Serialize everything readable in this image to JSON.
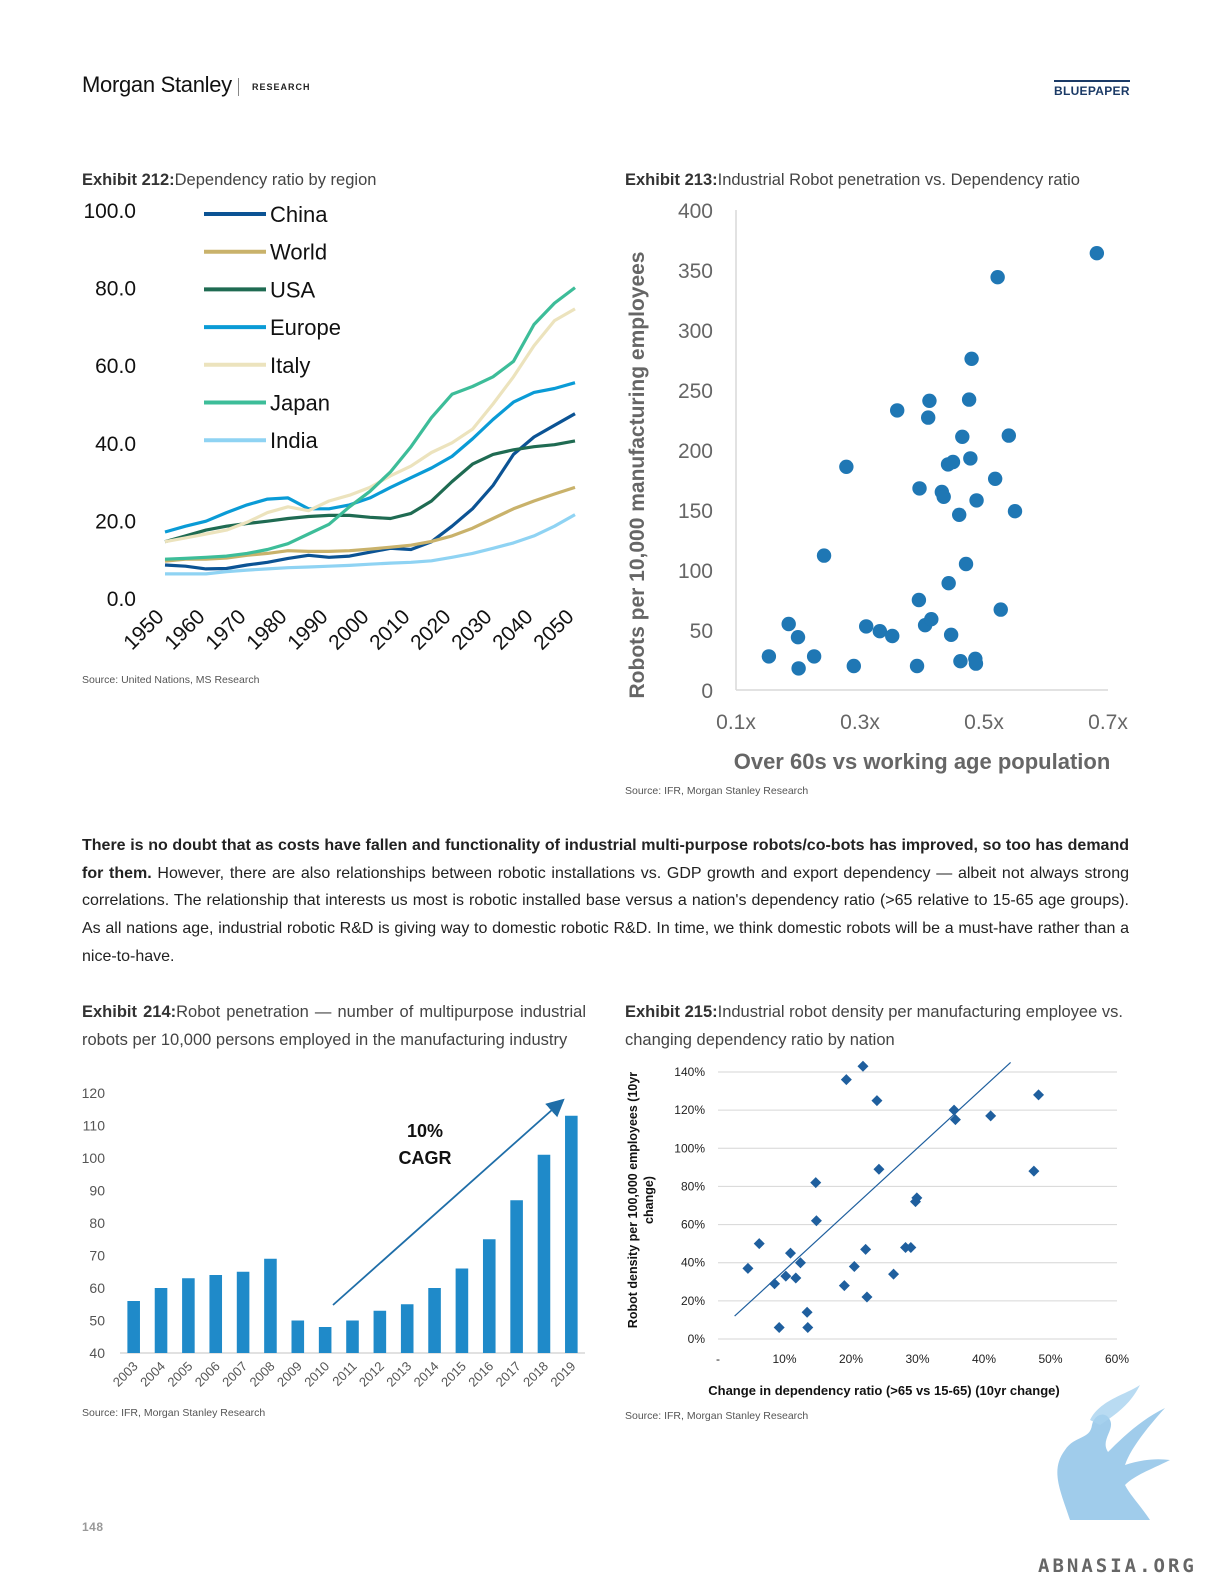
{
  "header": {
    "brand": "Morgan Stanley",
    "section": "RESEARCH",
    "badge": "BLUEPAPER"
  },
  "exhibit212": {
    "label": "Exhibit 212:",
    "title": "Dependency ratio by region",
    "source": "Source: United Nations, MS Research"
  },
  "exhibit213": {
    "label": "Exhibit 213:",
    "title": "Industrial Robot penetration vs. Dependency ratio",
    "source": "Source: IFR, Morgan Stanley Research"
  },
  "exhibit214": {
    "label": "Exhibit 214:",
    "title": "Robot penetration — number of multipurpose industrial robots per 10,000 persons employed in the manufacturing industry",
    "source": "Source: IFR, Morgan Stanley Research"
  },
  "exhibit215": {
    "label": "Exhibit 215:",
    "title": "Industrial robot density per manufacturing employee vs. changing dependency ratio by nation",
    "source": "Source: IFR, Morgan Stanley Research"
  },
  "paragraph": {
    "bold": "There is no doubt that as costs have fallen and functionality of industrial multi-purpose robots/co-bots has improved, so too has demand for them.",
    "rest": " However, there are also relationships between robotic installations vs. GDP growth and export dependency — albeit not always strong correlations. The relationship that interests us most is robotic installed base versus a nation's dependency ratio (>65 relative to 15-65 age groups). As all nations age, industrial robotic R&D is giving way to domestic robotic R&D. In time, we think domestic robots will be a must-have rather than a nice-to-have."
  },
  "page_number": "148",
  "watermark": "ABNASIA.ORG",
  "chart_data": [
    {
      "id": "exhibit212",
      "type": "line",
      "title": "Dependency ratio by region",
      "xlabel": "",
      "ylabel": "",
      "ylim": [
        0,
        100
      ],
      "yticks": [
        "100.0",
        "80.0",
        "60.0",
        "40.0",
        "20.0",
        "0.0"
      ],
      "x": [
        1950,
        1955,
        1960,
        1965,
        1970,
        1975,
        1980,
        1985,
        1990,
        1995,
        2000,
        2005,
        2010,
        2015,
        2020,
        2025,
        2030,
        2035,
        2040,
        2045,
        2050
      ],
      "xticks": [
        "1950",
        "1960",
        "1970",
        "1980",
        "1990",
        "2000",
        "2010",
        "2020",
        "2030",
        "2040",
        "2050"
      ],
      "legend": "top-left",
      "series": [
        {
          "name": "China",
          "color": "#0b5394",
          "values": [
            8.5,
            8.2,
            7.5,
            7.6,
            8.5,
            9.2,
            10.2,
            11,
            10.5,
            10.8,
            11.8,
            12.8,
            12.5,
            14.5,
            18.5,
            23,
            29,
            37,
            41.5,
            44.5,
            47.5
          ]
        },
        {
          "name": "World",
          "color": "#c9b26b",
          "values": [
            9.5,
            10,
            10,
            10.3,
            11,
            11.5,
            12.2,
            12,
            12,
            12.2,
            12.6,
            13.1,
            13.6,
            14.6,
            16,
            18,
            20.5,
            23,
            25,
            26.8,
            28.5
          ]
        },
        {
          "name": "USA",
          "color": "#1f6b52",
          "values": [
            14.5,
            16,
            17.5,
            18.5,
            19.2,
            19.8,
            20.5,
            21,
            21.3,
            21.3,
            20.8,
            20.5,
            21.8,
            25,
            30,
            34.5,
            37,
            38.2,
            39,
            39.5,
            40.5
          ]
        },
        {
          "name": "Europe",
          "color": "#0a9bd6",
          "values": [
            17,
            18.5,
            19.8,
            22,
            24,
            25.5,
            25.8,
            23,
            23,
            24,
            25.8,
            28.5,
            31,
            33.5,
            36.5,
            41,
            46,
            50.5,
            53,
            54,
            55.5
          ]
        },
        {
          "name": "Italy",
          "color": "#ece3bd",
          "values": [
            14.5,
            15.5,
            16.5,
            17.5,
            19.5,
            22,
            23.5,
            22.5,
            25,
            26.5,
            28.5,
            31.5,
            34,
            37.5,
            40,
            43.5,
            50,
            57,
            65,
            71.5,
            74.5
          ]
        },
        {
          "name": "Japan",
          "color": "#3dbd99",
          "values": [
            10,
            10.2,
            10.5,
            10.8,
            11.5,
            12.5,
            14,
            16.5,
            19,
            23.5,
            27.5,
            32.5,
            39,
            46.5,
            52.5,
            54.5,
            57,
            61,
            70.5,
            76,
            80
          ]
        },
        {
          "name": "India",
          "color": "#8fd3f3",
          "values": [
            6.2,
            6.2,
            6.2,
            6.8,
            7.2,
            7.5,
            7.8,
            8,
            8.2,
            8.4,
            8.7,
            9,
            9.2,
            9.6,
            10.5,
            11.5,
            12.8,
            14.2,
            16,
            18.5,
            21.5
          ]
        }
      ]
    },
    {
      "id": "exhibit213",
      "type": "scatter",
      "title": "Industrial Robot penetration vs. Dependency ratio",
      "xlabel": "Over 60s vs working age population",
      "ylabel": "Robots per 10,000 manufacturing employees",
      "xlim": [
        0.1,
        0.7
      ],
      "ylim": [
        0,
        400
      ],
      "xticks": [
        "0.1x",
        "0.3x",
        "0.5x",
        "0.7x"
      ],
      "yticks": [
        "400",
        "350",
        "300",
        "250",
        "200",
        "150",
        "100",
        "50",
        "0"
      ],
      "color": "#1f77b4",
      "points": [
        [
          0.153,
          28
        ],
        [
          0.185,
          55
        ],
        [
          0.2,
          44
        ],
        [
          0.201,
          18
        ],
        [
          0.226,
          28
        ],
        [
          0.242,
          112
        ],
        [
          0.278,
          186
        ],
        [
          0.29,
          20
        ],
        [
          0.31,
          53
        ],
        [
          0.332,
          49
        ],
        [
          0.352,
          45
        ],
        [
          0.36,
          233
        ],
        [
          0.392,
          20
        ],
        [
          0.395,
          75
        ],
        [
          0.396,
          168
        ],
        [
          0.405,
          54
        ],
        [
          0.41,
          227
        ],
        [
          0.412,
          241
        ],
        [
          0.415,
          59
        ],
        [
          0.432,
          165
        ],
        [
          0.435,
          161
        ],
        [
          0.442,
          188
        ],
        [
          0.443,
          89
        ],
        [
          0.447,
          46
        ],
        [
          0.45,
          190
        ],
        [
          0.46,
          146
        ],
        [
          0.462,
          24
        ],
        [
          0.465,
          211
        ],
        [
          0.471,
          105
        ],
        [
          0.476,
          242
        ],
        [
          0.478,
          193
        ],
        [
          0.48,
          276
        ],
        [
          0.486,
          26
        ],
        [
          0.487,
          22
        ],
        [
          0.488,
          158
        ],
        [
          0.518,
          176
        ],
        [
          0.522,
          344
        ],
        [
          0.527,
          67
        ],
        [
          0.54,
          212
        ],
        [
          0.55,
          149
        ],
        [
          0.682,
          364
        ]
      ]
    },
    {
      "id": "exhibit214",
      "type": "bar",
      "title": "Robot penetration — number of multipurpose industrial robots per 10,000 persons employed in the manufacturing industry",
      "categories": [
        "2003",
        "2004",
        "2005",
        "2006",
        "2007",
        "2008",
        "2009",
        "2010",
        "2011",
        "2012",
        "2013",
        "2014",
        "2015",
        "2016",
        "2017",
        "2018",
        "2019"
      ],
      "values": [
        56,
        60,
        63,
        64,
        65,
        69,
        50,
        48,
        50,
        53,
        55,
        60,
        66,
        75,
        87,
        101,
        113
      ],
      "ylim": [
        40,
        120
      ],
      "yticks": [
        "120",
        "110",
        "100",
        "90",
        "80",
        "70",
        "60",
        "50",
        "40"
      ],
      "color": "#1f8ac9",
      "annotation": [
        "10%",
        "CAGR"
      ]
    },
    {
      "id": "exhibit215",
      "type": "scatter",
      "title": "Industrial robot density per manufacturing employee vs. changing dependency ratio by nation",
      "xlabel": "Change in dependency ratio (>65 vs 15-65) (10yr change)",
      "ylabel": "Robot density per 100,000 employees (10yr change)",
      "xlim": [
        0,
        0.6
      ],
      "ylim": [
        0,
        1.4
      ],
      "xticks": [
        "-",
        "10%",
        "20%",
        "30%",
        "40%",
        "50%",
        "60%"
      ],
      "yticks": [
        "140%",
        "120%",
        "100%",
        "80%",
        "60%",
        "40%",
        "20%",
        "0%"
      ],
      "color": "#1f5f9e",
      "trendline": [
        [
          0.025,
          0.12
        ],
        [
          0.44,
          1.45
        ]
      ],
      "points": [
        [
          0.045,
          0.37
        ],
        [
          0.062,
          0.5
        ],
        [
          0.085,
          0.29
        ],
        [
          0.092,
          0.06
        ],
        [
          0.102,
          0.33
        ],
        [
          0.109,
          0.45
        ],
        [
          0.117,
          0.32
        ],
        [
          0.124,
          0.4
        ],
        [
          0.134,
          0.14
        ],
        [
          0.135,
          0.06
        ],
        [
          0.147,
          0.82
        ],
        [
          0.148,
          0.62
        ],
        [
          0.19,
          0.28
        ],
        [
          0.193,
          1.36
        ],
        [
          0.205,
          0.38
        ],
        [
          0.218,
          1.43
        ],
        [
          0.222,
          0.47
        ],
        [
          0.224,
          0.22
        ],
        [
          0.239,
          1.25
        ],
        [
          0.242,
          0.89
        ],
        [
          0.264,
          0.34
        ],
        [
          0.282,
          0.48
        ],
        [
          0.29,
          0.48
        ],
        [
          0.297,
          0.72
        ],
        [
          0.299,
          0.74
        ],
        [
          0.355,
          1.2
        ],
        [
          0.357,
          1.15
        ],
        [
          0.41,
          1.17
        ],
        [
          0.475,
          0.88
        ],
        [
          0.482,
          1.28
        ]
      ]
    }
  ]
}
